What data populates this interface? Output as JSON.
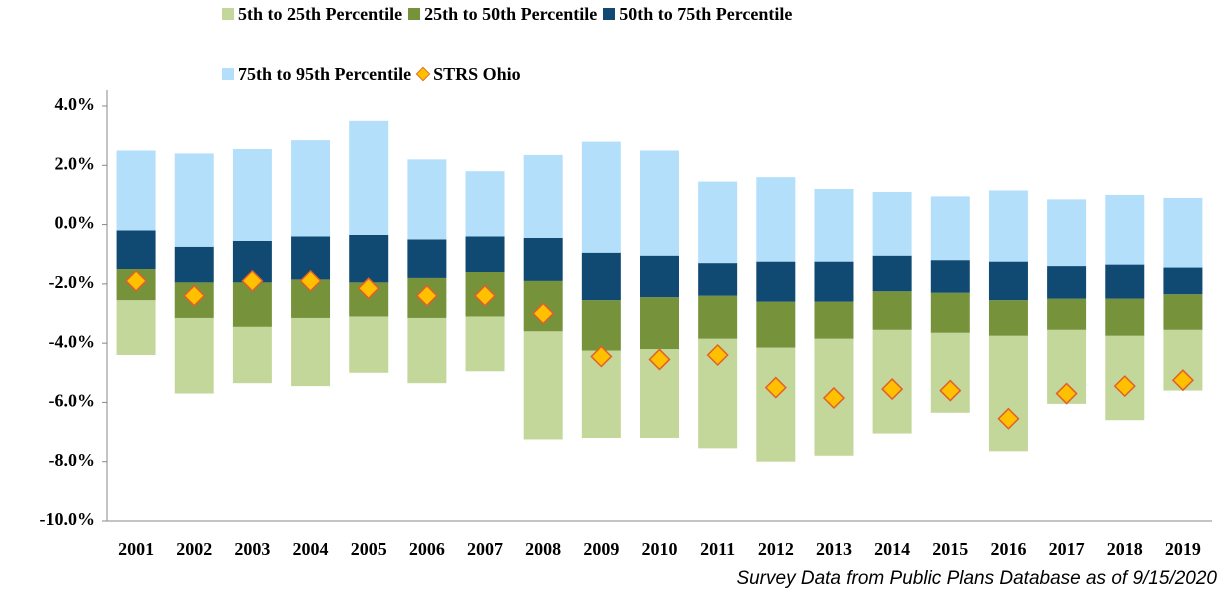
{
  "chart_data": {
    "type": "floating-bar",
    "legend": "top",
    "categories": [
      "2001",
      "2002",
      "2003",
      "2004",
      "2005",
      "2006",
      "2007",
      "2008",
      "2009",
      "2010",
      "2011",
      "2012",
      "2013",
      "2014",
      "2015",
      "2016",
      "2017",
      "2018",
      "2019"
    ],
    "series": [
      {
        "name": "5th to 25th Percentile",
        "color": "#c4d79b",
        "values": [
          [
            -4.4,
            -2.55
          ],
          [
            -5.7,
            -3.15
          ],
          [
            -5.35,
            -3.45
          ],
          [
            -5.45,
            -3.15
          ],
          [
            -5.0,
            -3.1
          ],
          [
            -5.35,
            -3.15
          ],
          [
            -4.95,
            -3.1
          ],
          [
            -7.25,
            -3.6
          ],
          [
            -7.2,
            -4.25
          ],
          [
            -7.2,
            -4.2
          ],
          [
            -7.55,
            -3.85
          ],
          [
            -8.0,
            -4.15
          ],
          [
            -7.8,
            -3.85
          ],
          [
            -7.05,
            -3.55
          ],
          [
            -6.35,
            -3.65
          ],
          [
            -7.65,
            -3.75
          ],
          [
            -6.05,
            -3.55
          ],
          [
            -6.6,
            -3.75
          ],
          [
            -5.6,
            -3.55
          ]
        ]
      },
      {
        "name": "25th to 50th Percentile",
        "color": "#76933c",
        "values": [
          [
            -2.55,
            -1.5
          ],
          [
            -3.15,
            -1.95
          ],
          [
            -3.45,
            -1.95
          ],
          [
            -3.15,
            -1.85
          ],
          [
            -3.1,
            -1.95
          ],
          [
            -3.15,
            -1.8
          ],
          [
            -3.1,
            -1.6
          ],
          [
            -3.6,
            -1.9
          ],
          [
            -4.25,
            -2.55
          ],
          [
            -4.2,
            -2.45
          ],
          [
            -3.85,
            -2.4
          ],
          [
            -4.15,
            -2.6
          ],
          [
            -3.85,
            -2.6
          ],
          [
            -3.55,
            -2.25
          ],
          [
            -3.65,
            -2.3
          ],
          [
            -3.75,
            -2.55
          ],
          [
            -3.55,
            -2.5
          ],
          [
            -3.75,
            -2.5
          ],
          [
            -3.55,
            -2.35
          ]
        ]
      },
      {
        "name": "50th to 75th Percentile",
        "color": "#104a73",
        "values": [
          [
            -1.5,
            -0.2
          ],
          [
            -1.95,
            -0.75
          ],
          [
            -1.95,
            -0.55
          ],
          [
            -1.85,
            -0.4
          ],
          [
            -1.95,
            -0.35
          ],
          [
            -1.8,
            -0.5
          ],
          [
            -1.6,
            -0.4
          ],
          [
            -1.9,
            -0.45
          ],
          [
            -2.55,
            -0.95
          ],
          [
            -2.45,
            -1.05
          ],
          [
            -2.4,
            -1.3
          ],
          [
            -2.6,
            -1.25
          ],
          [
            -2.6,
            -1.25
          ],
          [
            -2.25,
            -1.05
          ],
          [
            -2.3,
            -1.2
          ],
          [
            -2.55,
            -1.25
          ],
          [
            -2.5,
            -1.4
          ],
          [
            -2.5,
            -1.35
          ],
          [
            -2.35,
            -1.45
          ]
        ]
      },
      {
        "name": "75th to 95th Percentile",
        "color": "#b3dffb",
        "values": [
          [
            -0.2,
            2.5
          ],
          [
            -0.75,
            2.4
          ],
          [
            -0.55,
            2.55
          ],
          [
            -0.4,
            2.85
          ],
          [
            -0.35,
            3.5
          ],
          [
            -0.5,
            2.2
          ],
          [
            -0.4,
            1.8
          ],
          [
            -0.45,
            2.35
          ],
          [
            -0.95,
            2.8
          ],
          [
            -1.05,
            2.5
          ],
          [
            -1.3,
            1.45
          ],
          [
            -1.25,
            1.6
          ],
          [
            -1.25,
            1.2
          ],
          [
            -1.05,
            1.1
          ],
          [
            -1.2,
            0.95
          ],
          [
            -1.25,
            1.15
          ],
          [
            -1.4,
            0.85
          ],
          [
            -1.35,
            1.0
          ],
          [
            -1.45,
            0.9
          ]
        ]
      },
      {
        "name": "STRS Ohio",
        "color": "#ffc000",
        "marker": "diamond",
        "values": [
          -1.9,
          -2.4,
          -1.9,
          -1.9,
          -2.15,
          -2.4,
          -2.4,
          -3.0,
          -4.45,
          -4.55,
          -4.4,
          -5.5,
          -5.85,
          -5.55,
          -5.6,
          -6.55,
          -5.7,
          -5.45,
          -5.25
        ]
      }
    ],
    "ylim": [
      -10,
      4
    ],
    "yticks": [
      {
        "value": -10,
        "label": "-10.0%"
      },
      {
        "value": -8,
        "label": "-8.0%"
      },
      {
        "value": -6,
        "label": "-6.0%"
      },
      {
        "value": -4,
        "label": "-4.0%"
      },
      {
        "value": -2,
        "label": "-2.0%"
      },
      {
        "value": 0,
        "label": "0.0%"
      },
      {
        "value": 2,
        "label": "2.0%"
      },
      {
        "value": 4,
        "label": "4.0%"
      }
    ],
    "grid": false,
    "note": "Survey Data from Public Plans Database as of 9/15/2020"
  }
}
